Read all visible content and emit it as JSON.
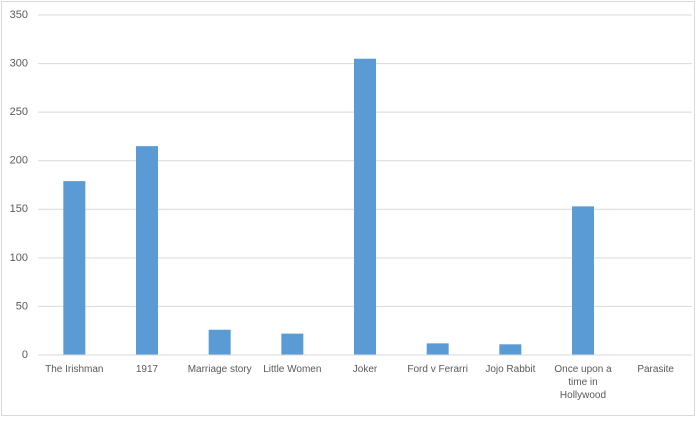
{
  "chart_data": {
    "type": "bar",
    "categories": [
      "The Irishman",
      "1917",
      "Marriage story",
      "Little Women",
      "Joker",
      "Ford v Ferarri",
      "Jojo Rabbit",
      "Once upon a time in Hollywood",
      "Parasite"
    ],
    "values": [
      179,
      215,
      26,
      22,
      305,
      12,
      11,
      153,
      0
    ],
    "color": "#5b9bd5",
    "ylim": [
      0,
      350
    ],
    "yticks": [
      0,
      50,
      100,
      150,
      200,
      250,
      300,
      350
    ],
    "grid": true
  }
}
